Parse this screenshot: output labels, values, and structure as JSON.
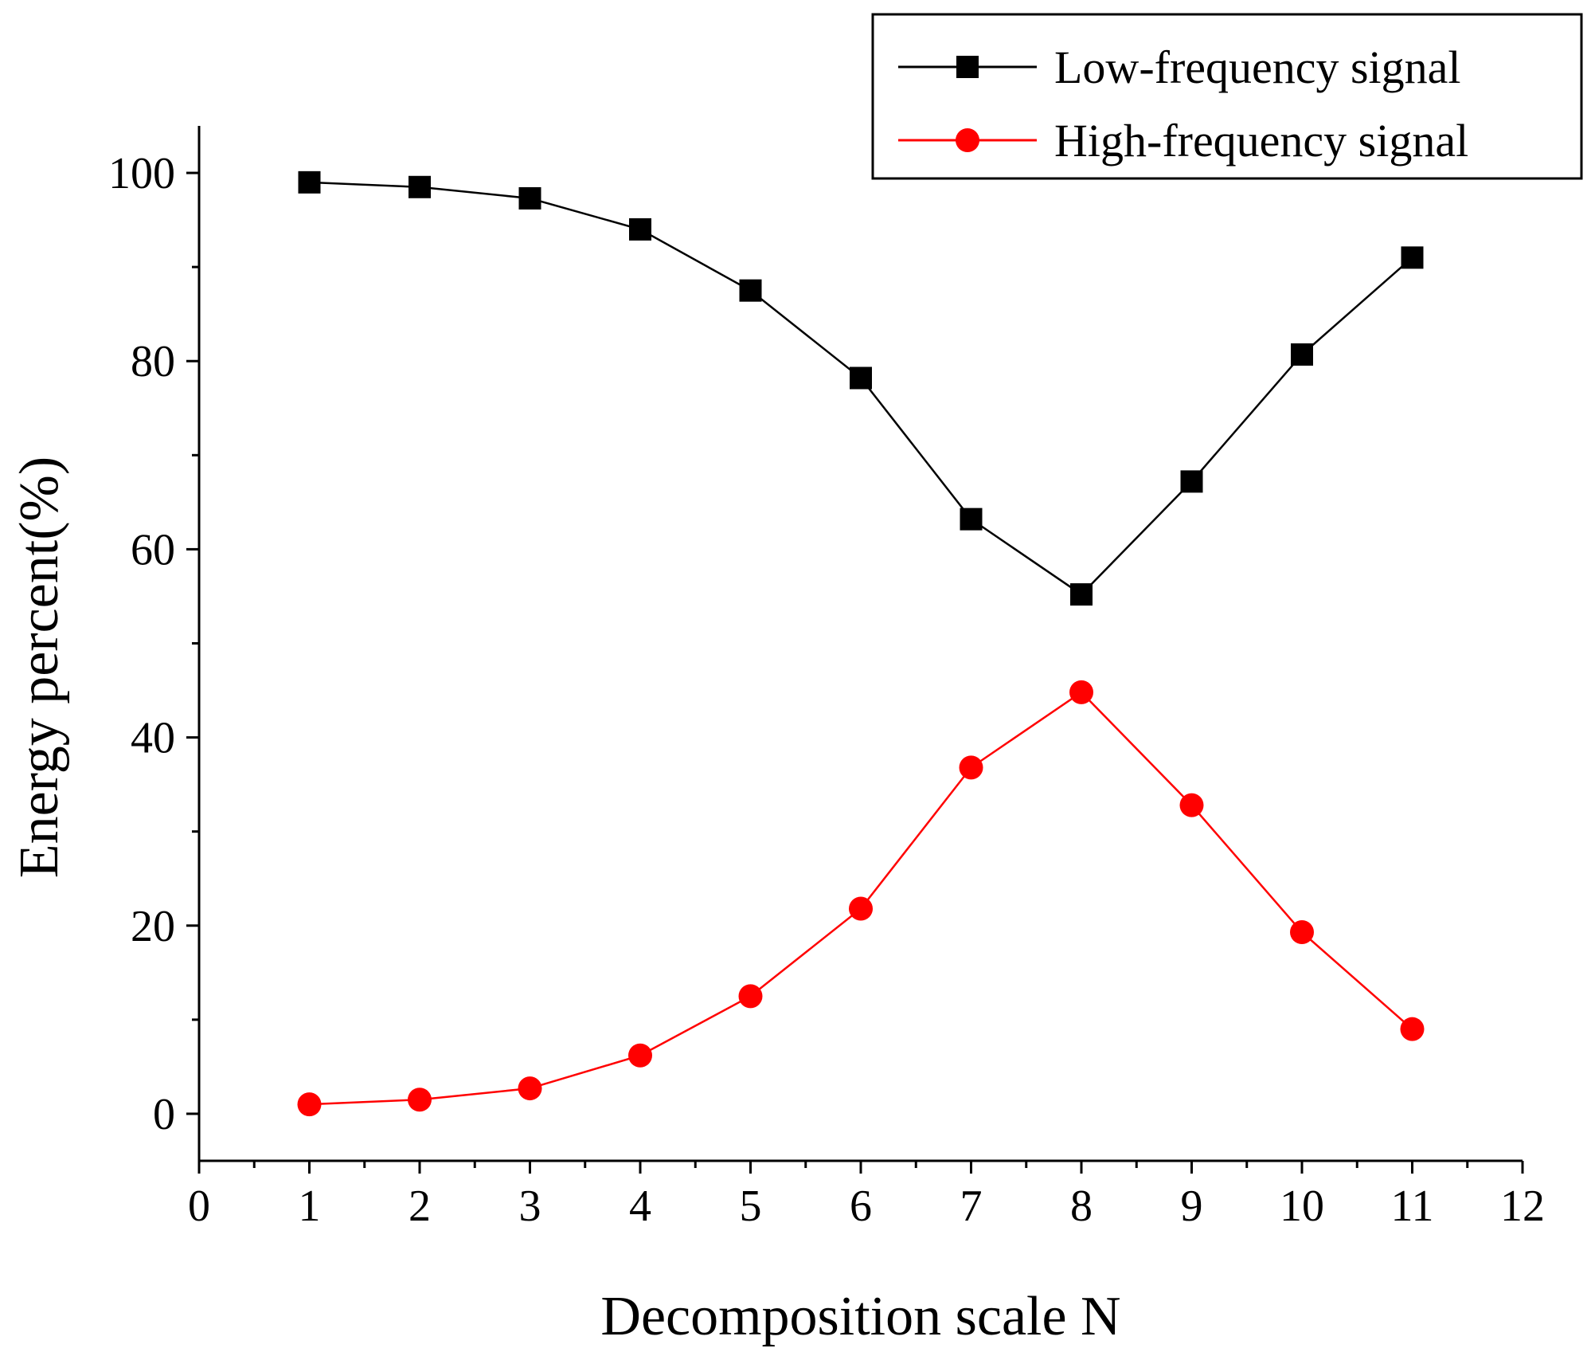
{
  "chart_data": {
    "type": "line",
    "xlabel": "Decomposition scale N",
    "ylabel": "Energy percent(%)",
    "xlim": [
      0,
      12
    ],
    "ylim": [
      -5,
      105
    ],
    "x_ticks": [
      0,
      1,
      2,
      3,
      4,
      5,
      6,
      7,
      8,
      9,
      10,
      11,
      12
    ],
    "y_ticks": [
      0,
      20,
      40,
      60,
      80,
      100
    ],
    "grid": false,
    "legend_position": "top-right",
    "x": [
      1,
      2,
      3,
      4,
      5,
      6,
      7,
      8,
      9,
      10,
      11
    ],
    "series": [
      {
        "name": "Low-frequency signal",
        "color": "#000000",
        "marker": "square",
        "values": [
          99.0,
          98.5,
          97.3,
          94.0,
          87.5,
          78.2,
          63.2,
          55.2,
          67.2,
          80.7,
          91.0
        ]
      },
      {
        "name": "High-frequency signal",
        "color": "#ff0000",
        "marker": "circle",
        "values": [
          1.0,
          1.5,
          2.7,
          6.2,
          12.5,
          21.8,
          36.8,
          44.8,
          32.8,
          19.3,
          9.0
        ]
      }
    ]
  }
}
